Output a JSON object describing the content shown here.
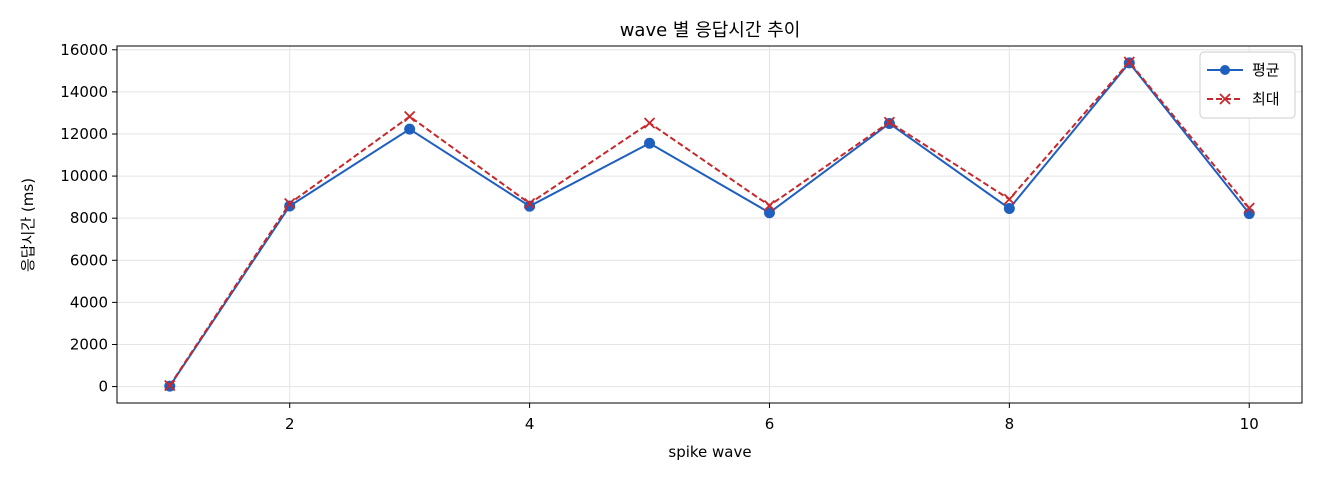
{
  "chart_data": {
    "type": "line",
    "title": "wave 별 응답시간 추이",
    "xlabel": "spike wave",
    "ylabel": "응답시간 (ms)",
    "x": [
      1,
      2,
      3,
      4,
      5,
      6,
      7,
      8,
      9,
      10
    ],
    "xticks": [
      2,
      4,
      6,
      8,
      10
    ],
    "yticks": [
      0,
      2000,
      4000,
      6000,
      8000,
      10000,
      12000,
      14000,
      16000
    ],
    "xlim": [
      0.56,
      10.44
    ],
    "ylim": [
      -780,
      16180
    ],
    "grid": true,
    "legend_position": "top-right",
    "series": [
      {
        "name": "평균",
        "values": [
          20,
          8580,
          12230,
          8570,
          11560,
          8260,
          12500,
          8460,
          15380,
          8220
        ],
        "color": "#1f5fbf",
        "line_style": "solid",
        "marker": "circle"
      },
      {
        "name": "최대",
        "values": [
          50,
          8700,
          12830,
          8700,
          12520,
          8600,
          12560,
          8900,
          15420,
          8480
        ],
        "color": "#c8272b",
        "line_style": "dashed",
        "marker": "x"
      }
    ]
  }
}
